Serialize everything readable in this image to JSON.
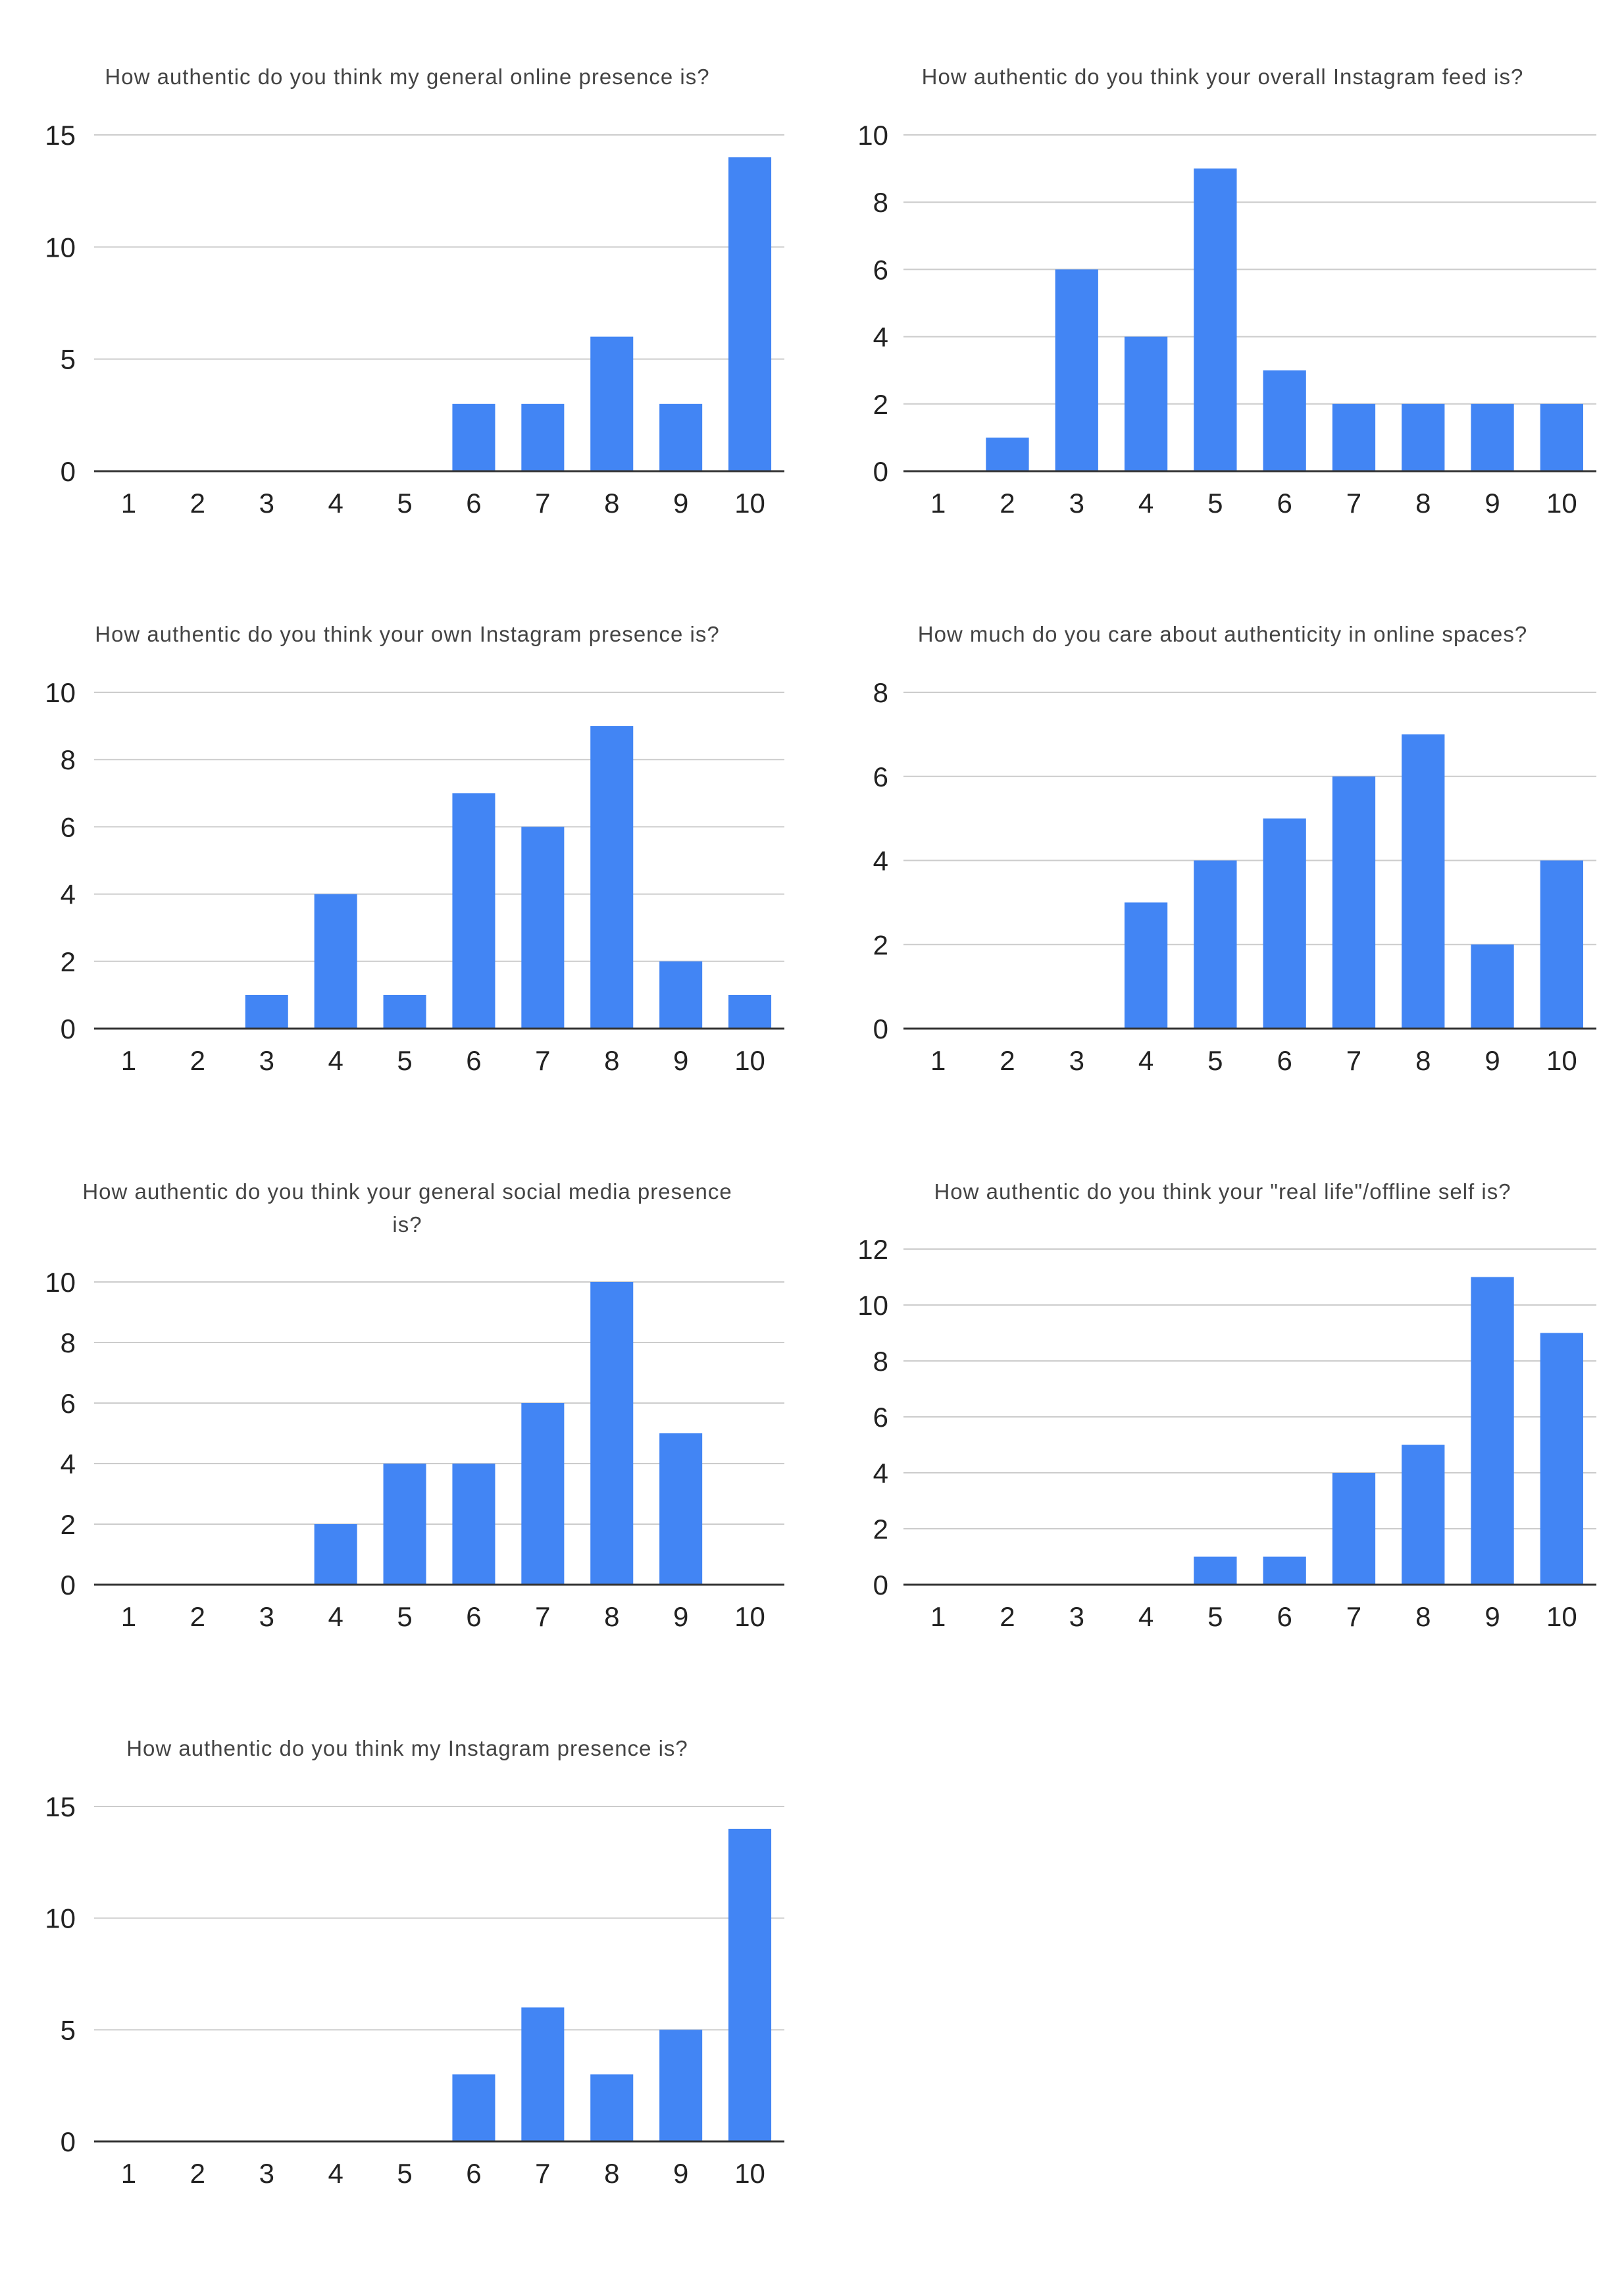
{
  "style": {
    "bar_color": "#4285F4",
    "grid_color": "#CCCCCC",
    "axis_color": "#333333",
    "title_color": "#444444",
    "tick_color": "#222222"
  },
  "chart_data": [
    {
      "type": "bar",
      "title": "How authentic do you think my general online presence is?",
      "categories": [
        "1",
        "2",
        "3",
        "4",
        "5",
        "6",
        "7",
        "8",
        "9",
        "10"
      ],
      "values": [
        0,
        0,
        0,
        0,
        0,
        3,
        3,
        6,
        3,
        14
      ],
      "yticks": [
        0,
        5,
        10,
        15
      ],
      "ylim": [
        0,
        15
      ],
      "grid": true
    },
    {
      "type": "bar",
      "title": "How authentic do you think your overall Instagram feed is?",
      "categories": [
        "1",
        "2",
        "3",
        "4",
        "5",
        "6",
        "7",
        "8",
        "9",
        "10"
      ],
      "values": [
        0,
        1,
        6,
        4,
        9,
        3,
        2,
        2,
        2,
        2
      ],
      "yticks": [
        0,
        2,
        4,
        6,
        8,
        10
      ],
      "ylim": [
        0,
        10
      ],
      "grid": true
    },
    {
      "type": "bar",
      "title": "How authentic do you think your own Instagram presence is?",
      "categories": [
        "1",
        "2",
        "3",
        "4",
        "5",
        "6",
        "7",
        "8",
        "9",
        "10"
      ],
      "values": [
        0,
        0,
        1,
        4,
        1,
        7,
        6,
        9,
        2,
        1
      ],
      "yticks": [
        0,
        2,
        4,
        6,
        8,
        10
      ],
      "ylim": [
        0,
        10
      ],
      "grid": true
    },
    {
      "type": "bar",
      "title": "How much do you care about authenticity in online spaces?",
      "categories": [
        "1",
        "2",
        "3",
        "4",
        "5",
        "6",
        "7",
        "8",
        "9",
        "10"
      ],
      "values": [
        0,
        0,
        0,
        3,
        4,
        5,
        6,
        7,
        2,
        4
      ],
      "yticks": [
        0,
        2,
        4,
        6,
        8
      ],
      "ylim": [
        0,
        8
      ],
      "grid": true
    },
    {
      "type": "bar",
      "title": "How authentic do you think your general social media presence is?",
      "categories": [
        "1",
        "2",
        "3",
        "4",
        "5",
        "6",
        "7",
        "8",
        "9",
        "10"
      ],
      "values": [
        0,
        0,
        0,
        2,
        4,
        4,
        6,
        10,
        5,
        0
      ],
      "yticks": [
        0,
        2,
        4,
        6,
        8,
        10
      ],
      "ylim": [
        0,
        10
      ],
      "grid": true
    },
    {
      "type": "bar",
      "title": "How authentic do you think your \"real life\"/offline self is?",
      "categories": [
        "1",
        "2",
        "3",
        "4",
        "5",
        "6",
        "7",
        "8",
        "9",
        "10"
      ],
      "values": [
        0,
        0,
        0,
        0,
        1,
        1,
        4,
        5,
        11,
        9
      ],
      "yticks": [
        0,
        2,
        4,
        6,
        8,
        10,
        12
      ],
      "ylim": [
        0,
        12
      ],
      "grid": true
    },
    {
      "type": "bar",
      "title": "How authentic do you think my Instagram presence is?",
      "categories": [
        "1",
        "2",
        "3",
        "4",
        "5",
        "6",
        "7",
        "8",
        "9",
        "10"
      ],
      "values": [
        0,
        0,
        0,
        0,
        0,
        3,
        6,
        3,
        5,
        14
      ],
      "yticks": [
        0,
        5,
        10,
        15
      ],
      "ylim": [
        0,
        15
      ],
      "grid": true
    }
  ]
}
